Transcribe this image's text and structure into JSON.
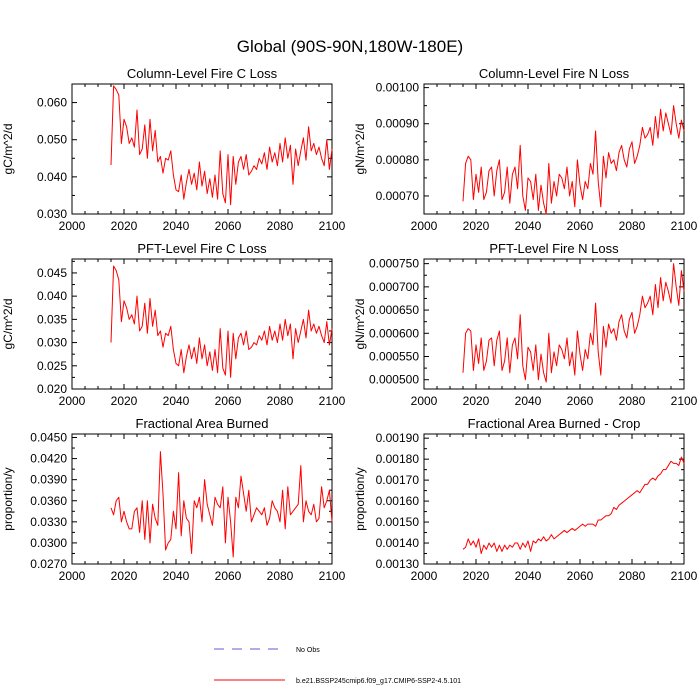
{
  "figure": {
    "title": "Global (90S-90N,180W-180E)"
  },
  "colors": {
    "series": "#ff0000",
    "obs": "#6a5acd",
    "axis": "#000000"
  },
  "legend": {
    "obs_label": "No Obs",
    "model_label": "b.e21.BSSP245cmip6.f09_g17.CMIP6-SSP2-4.5.101"
  },
  "chart_data": [
    {
      "id": "col-c",
      "type": "line",
      "title": "Column-Level Fire C Loss",
      "ylabel": "gC/m^2/d",
      "xlabel": "",
      "xlim": [
        2000,
        2100
      ],
      "xticks": [
        2000,
        2020,
        2040,
        2060,
        2080,
        2100
      ],
      "ylim": [
        0.03,
        0.065
      ],
      "yticks": [
        0.03,
        0.04,
        0.05,
        0.06
      ],
      "ytick_labels": [
        "0.030",
        "0.040",
        "0.050",
        "0.060"
      ],
      "x_start": 2015,
      "values": [
        0.0432,
        0.0645,
        0.0635,
        0.062,
        0.049,
        0.0555,
        0.0535,
        0.049,
        0.0505,
        0.048,
        0.058,
        0.046,
        0.0475,
        0.054,
        0.045,
        0.0555,
        0.047,
        0.0525,
        0.044,
        0.0455,
        0.041,
        0.045,
        0.0445,
        0.047,
        0.0405,
        0.0365,
        0.036,
        0.0405,
        0.034,
        0.0385,
        0.042,
        0.038,
        0.041,
        0.0365,
        0.044,
        0.0375,
        0.0415,
        0.0355,
        0.0395,
        0.0345,
        0.0405,
        0.034,
        0.047,
        0.0355,
        0.033,
        0.046,
        0.0325,
        0.0455,
        0.038,
        0.044,
        0.0455,
        0.042,
        0.046,
        0.0405,
        0.0415,
        0.043,
        0.042,
        0.045,
        0.0435,
        0.0465,
        0.042,
        0.048,
        0.044,
        0.0465,
        0.043,
        0.049,
        0.044,
        0.0505,
        0.045,
        0.0485,
        0.038,
        0.0475,
        0.043,
        0.047,
        0.0505,
        0.0445,
        0.0535,
        0.047,
        0.049,
        0.046,
        0.048,
        0.045,
        0.043,
        0.05,
        0.042,
        0.0475
      ]
    },
    {
      "id": "col-n",
      "type": "line",
      "title": "Column-Level Fire N Loss",
      "ylabel": "gN/m^2/d",
      "xlabel": "",
      "xlim": [
        2000,
        2100
      ],
      "xticks": [
        2000,
        2020,
        2040,
        2060,
        2080,
        2100
      ],
      "ylim": [
        0.00065,
        0.00101
      ],
      "yticks": [
        0.0007,
        0.0008,
        0.0009,
        0.001
      ],
      "ytick_labels": [
        "0.00070",
        "0.00080",
        "0.00090",
        "0.00100"
      ],
      "x_start": 2015,
      "values": [
        0.000685,
        0.00079,
        0.00081,
        0.0008,
        0.00069,
        0.00076,
        0.00071,
        0.00078,
        0.00069,
        0.00071,
        0.00077,
        0.00078,
        0.0007,
        0.00077,
        0.0008,
        0.00069,
        0.00071,
        0.00078,
        0.00068,
        0.00076,
        0.00078,
        0.00072,
        0.00084,
        0.0007,
        0.00066,
        0.00075,
        0.00074,
        0.00069,
        0.00076,
        0.00066,
        0.00073,
        0.00068,
        0.00065,
        0.00079,
        0.00068,
        0.00074,
        0.0007,
        0.00076,
        0.00075,
        0.00072,
        0.00078,
        0.0007,
        0.00074,
        0.00067,
        0.0008,
        0.00073,
        0.00069,
        0.00074,
        0.00072,
        0.00079,
        0.00076,
        0.00088,
        0.00074,
        0.00067,
        0.00081,
        0.00075,
        0.00082,
        0.00079,
        0.0008,
        0.00077,
        0.00082,
        0.00084,
        0.0008,
        0.00078,
        0.00083,
        0.00085,
        0.00079,
        0.00081,
        0.00084,
        0.00089,
        0.00086,
        0.00087,
        0.00089,
        0.00084,
        0.00092,
        0.00086,
        0.00094,
        0.00088,
        0.00093,
        0.0009,
        0.00087,
        0.00095,
        0.0009,
        0.00086,
        0.00091,
        0.00088
      ]
    },
    {
      "id": "pft-c",
      "type": "line",
      "title": "PFT-Level Fire C Loss",
      "ylabel": "gC/m^2/d",
      "xlabel": "",
      "xlim": [
        2000,
        2100
      ],
      "xticks": [
        2000,
        2020,
        2040,
        2060,
        2080,
        2100
      ],
      "ylim": [
        0.02,
        0.048
      ],
      "yticks": [
        0.02,
        0.025,
        0.03,
        0.035,
        0.04,
        0.045
      ],
      "ytick_labels": [
        "0.020",
        "0.025",
        "0.030",
        "0.035",
        "0.040",
        "0.045"
      ],
      "x_start": 2015,
      "values": [
        0.03,
        0.0465,
        0.0455,
        0.0435,
        0.0345,
        0.039,
        0.0375,
        0.035,
        0.036,
        0.034,
        0.04,
        0.0325,
        0.0335,
        0.0385,
        0.032,
        0.0395,
        0.0335,
        0.037,
        0.0315,
        0.0325,
        0.029,
        0.032,
        0.0315,
        0.0335,
        0.0285,
        0.0255,
        0.025,
        0.0285,
        0.0235,
        0.027,
        0.0295,
        0.0265,
        0.029,
        0.0255,
        0.031,
        0.0265,
        0.0295,
        0.025,
        0.028,
        0.024,
        0.0285,
        0.0235,
        0.033,
        0.0245,
        0.023,
        0.0325,
        0.0225,
        0.032,
        0.0265,
        0.031,
        0.032,
        0.0295,
        0.0325,
        0.0285,
        0.029,
        0.03,
        0.0295,
        0.0315,
        0.0305,
        0.0325,
        0.0295,
        0.0335,
        0.0305,
        0.0325,
        0.03,
        0.034,
        0.0305,
        0.035,
        0.0315,
        0.034,
        0.0265,
        0.033,
        0.03,
        0.0325,
        0.035,
        0.031,
        0.037,
        0.0325,
        0.034,
        0.032,
        0.0335,
        0.0315,
        0.03,
        0.0345,
        0.0295,
        0.033
      ]
    },
    {
      "id": "pft-n",
      "type": "line",
      "title": "PFT-Level Fire N Loss",
      "ylabel": "gN/m^2/d",
      "xlabel": "",
      "xlim": [
        2000,
        2100
      ],
      "xticks": [
        2000,
        2020,
        2040,
        2060,
        2080,
        2100
      ],
      "ylim": [
        0.00048,
        0.00076
      ],
      "yticks": [
        0.0005,
        0.00055,
        0.0006,
        0.00065,
        0.0007,
        0.00075
      ],
      "ytick_labels": [
        "0.000500",
        "0.000550",
        "0.000600",
        "0.000650",
        "0.000700",
        "0.000750"
      ],
      "x_start": 2015,
      "values": [
        0.000515,
        0.0006,
        0.00061,
        0.000605,
        0.00052,
        0.000575,
        0.000535,
        0.00059,
        0.00052,
        0.00054,
        0.000585,
        0.00059,
        0.00053,
        0.000585,
        0.000605,
        0.00052,
        0.00054,
        0.00059,
        0.000515,
        0.000575,
        0.00059,
        0.000545,
        0.00064,
        0.00053,
        0.0005,
        0.00057,
        0.00056,
        0.00052,
        0.000575,
        0.0005,
        0.000555,
        0.000515,
        0.000495,
        0.0006,
        0.000515,
        0.00056,
        0.00053,
        0.000575,
        0.000565,
        0.000545,
        0.00059,
        0.00053,
        0.00056,
        0.00051,
        0.000605,
        0.000555,
        0.00052,
        0.000565,
        0.000545,
        0.0006,
        0.000575,
        0.000665,
        0.00056,
        0.00051,
        0.000615,
        0.00057,
        0.00062,
        0.0006,
        0.00061,
        0.000585,
        0.000625,
        0.00064,
        0.000605,
        0.00059,
        0.00063,
        0.000645,
        0.0006,
        0.000615,
        0.00064,
        0.00068,
        0.000655,
        0.000665,
        0.00068,
        0.00064,
        0.000705,
        0.000655,
        0.00072,
        0.00067,
        0.00071,
        0.00069,
        0.000665,
        0.00075,
        0.0007,
        0.00066,
        0.000735,
        0.00069
      ]
    },
    {
      "id": "area",
      "type": "line",
      "title": "Fractional Area Burned",
      "ylabel": "proportion/y",
      "xlabel": "",
      "xlim": [
        2000,
        2100
      ],
      "xticks": [
        2000,
        2020,
        2040,
        2060,
        2080,
        2100
      ],
      "ylim": [
        0.027,
        0.0455
      ],
      "yticks": [
        0.027,
        0.03,
        0.033,
        0.036,
        0.039,
        0.042,
        0.045
      ],
      "ytick_labels": [
        "0.0270",
        "0.0300",
        "0.0330",
        "0.0360",
        "0.0390",
        "0.0420",
        "0.0450"
      ],
      "x_start": 2015,
      "values": [
        0.035,
        0.034,
        0.036,
        0.0365,
        0.033,
        0.0345,
        0.033,
        0.032,
        0.032,
        0.0345,
        0.035,
        0.0315,
        0.036,
        0.0305,
        0.036,
        0.03,
        0.0355,
        0.0335,
        0.0325,
        0.043,
        0.037,
        0.029,
        0.03,
        0.0305,
        0.0345,
        0.032,
        0.04,
        0.031,
        0.036,
        0.0335,
        0.033,
        0.0285,
        0.036,
        0.035,
        0.0365,
        0.033,
        0.039,
        0.0355,
        0.034,
        0.0325,
        0.0365,
        0.0355,
        0.035,
        0.038,
        0.03,
        0.0365,
        0.033,
        0.028,
        0.0365,
        0.035,
        0.0395,
        0.037,
        0.0345,
        0.0375,
        0.033,
        0.034,
        0.035,
        0.0345,
        0.034,
        0.035,
        0.0325,
        0.0335,
        0.036,
        0.035,
        0.0345,
        0.033,
        0.0375,
        0.032,
        0.038,
        0.034,
        0.0345,
        0.035,
        0.0355,
        0.041,
        0.033,
        0.036,
        0.0345,
        0.034,
        0.0355,
        0.033,
        0.0335,
        0.038,
        0.035,
        0.036,
        0.0375,
        0.033
      ]
    },
    {
      "id": "area-crop",
      "type": "line",
      "title": "Fractional Area Burned - Crop",
      "ylabel": "proportion/y",
      "xlabel": "",
      "xlim": [
        2000,
        2100
      ],
      "xticks": [
        2000,
        2020,
        2040,
        2060,
        2080,
        2100
      ],
      "ylim": [
        0.0013,
        0.00192
      ],
      "yticks": [
        0.0013,
        0.0014,
        0.0015,
        0.0016,
        0.0017,
        0.0018,
        0.0019
      ],
      "ytick_labels": [
        "0.00130",
        "0.00140",
        "0.00150",
        "0.00160",
        "0.00170",
        "0.00180",
        "0.00190"
      ],
      "x_start": 2015,
      "values": [
        0.00137,
        0.00138,
        0.00142,
        0.00139,
        0.00141,
        0.00138,
        0.00142,
        0.00135,
        0.00139,
        0.00137,
        0.0014,
        0.00138,
        0.0014,
        0.00136,
        0.00139,
        0.00136,
        0.00139,
        0.00137,
        0.00139,
        0.00138,
        0.0014,
        0.0014,
        0.00137,
        0.0014,
        0.00138,
        0.00141,
        0.00136,
        0.00141,
        0.0014,
        0.00142,
        0.00141,
        0.00143,
        0.00141,
        0.00142,
        0.00144,
        0.00142,
        0.00143,
        0.00144,
        0.00145,
        0.00146,
        0.00145,
        0.00146,
        0.00147,
        0.00146,
        0.00147,
        0.00148,
        0.00149,
        0.00148,
        0.00149,
        0.00149,
        0.00149,
        0.00148,
        0.00151,
        0.00151,
        0.00152,
        0.00153,
        0.00153,
        0.00154,
        0.00157,
        0.00156,
        0.00158,
        0.00159,
        0.0016,
        0.00161,
        0.00162,
        0.00163,
        0.00164,
        0.00165,
        0.00164,
        0.00166,
        0.00168,
        0.00168,
        0.0017,
        0.00171,
        0.0017,
        0.00172,
        0.00173,
        0.00175,
        0.00175,
        0.00177,
        0.00179,
        0.00178,
        0.00178,
        0.00177,
        0.00181,
        0.00178
      ]
    }
  ]
}
